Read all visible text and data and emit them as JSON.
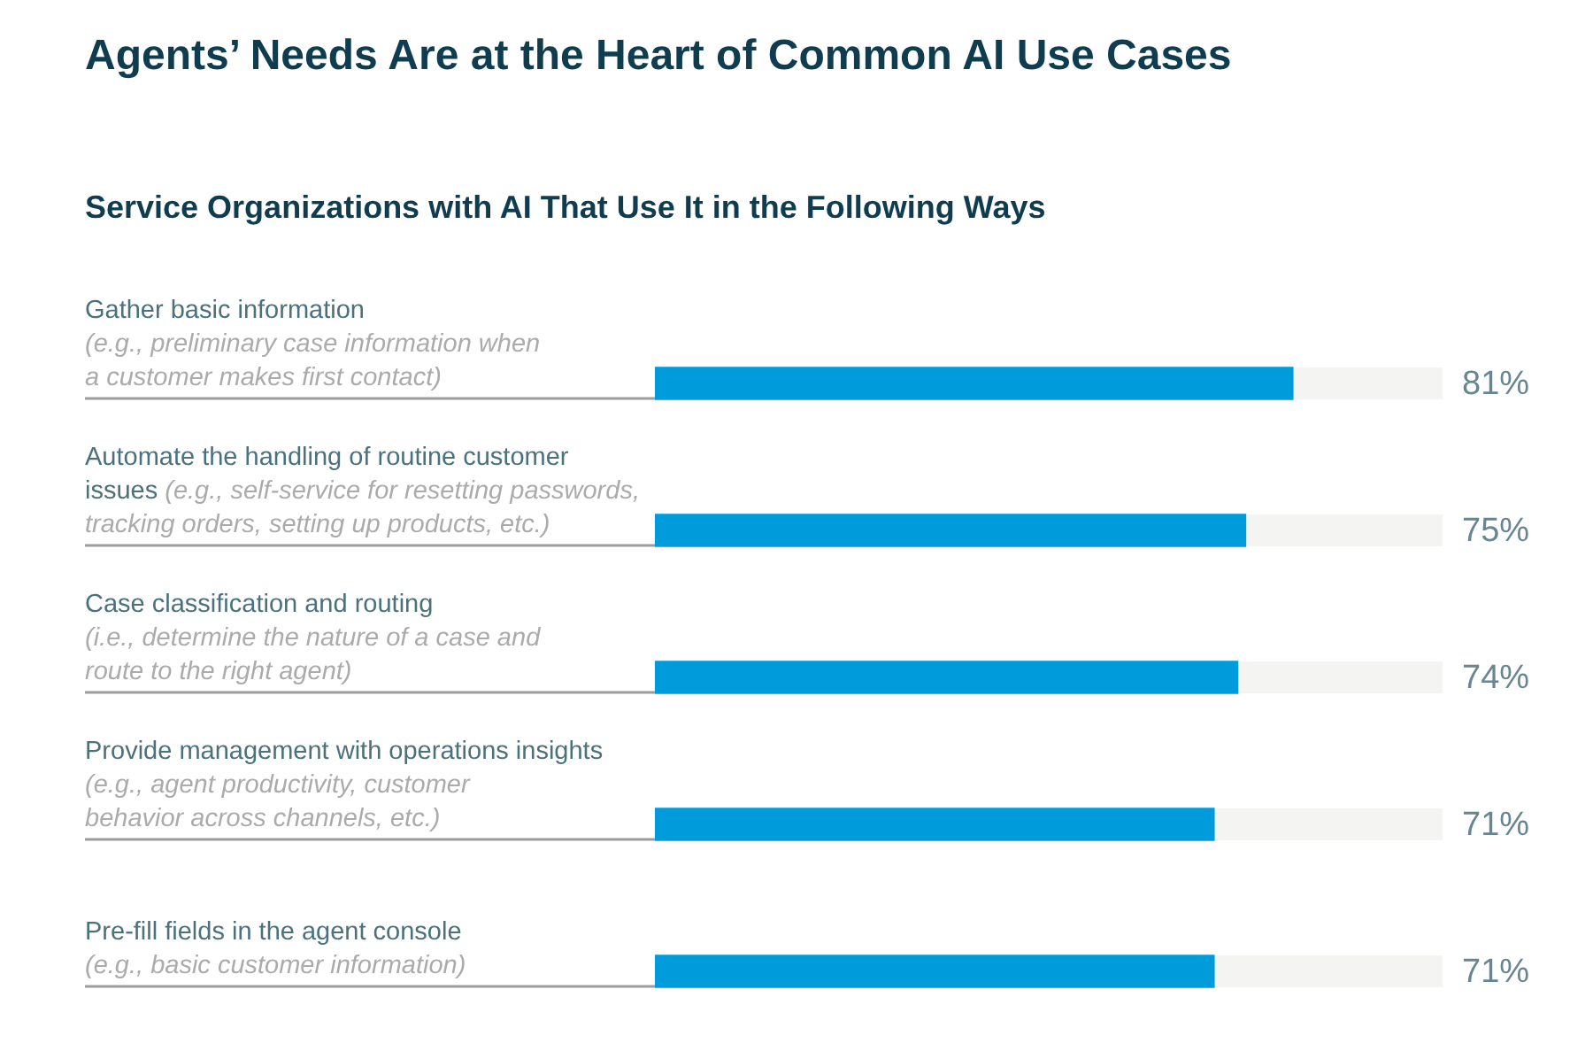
{
  "chart_data": {
    "type": "bar",
    "orientation": "horizontal",
    "title": "Agents’ Needs Are at the Heart of Common AI Use Cases",
    "subtitle": "Service Organizations with AI That Use It in the Following Ways",
    "categories": [
      "Gather basic information\n(e.g., preliminary case information when\na customer makes first contact)",
      "Automate the handling of routine customer\nissues (e.g., self-service for resetting passwords,\ntracking orders, setting up products, etc.)",
      "Case classification and routing\n(i.e., determine the nature of a case and\nroute to the right agent)",
      "Provide management with operations insights\n(e.g., agent productivity, customer\nbehavior across channels, etc.)",
      "Pre-fill fields in the agent console\n(e.g., basic customer information)"
    ],
    "values": [
      81,
      75,
      74,
      71,
      71
    ],
    "color": "#009bdb",
    "xlim": [
      0,
      100
    ],
    "value_labels": [
      "81%",
      "75%",
      "74%",
      "71%",
      "71%"
    ],
    "tick_labels": "y",
    "legend": false
  }
}
